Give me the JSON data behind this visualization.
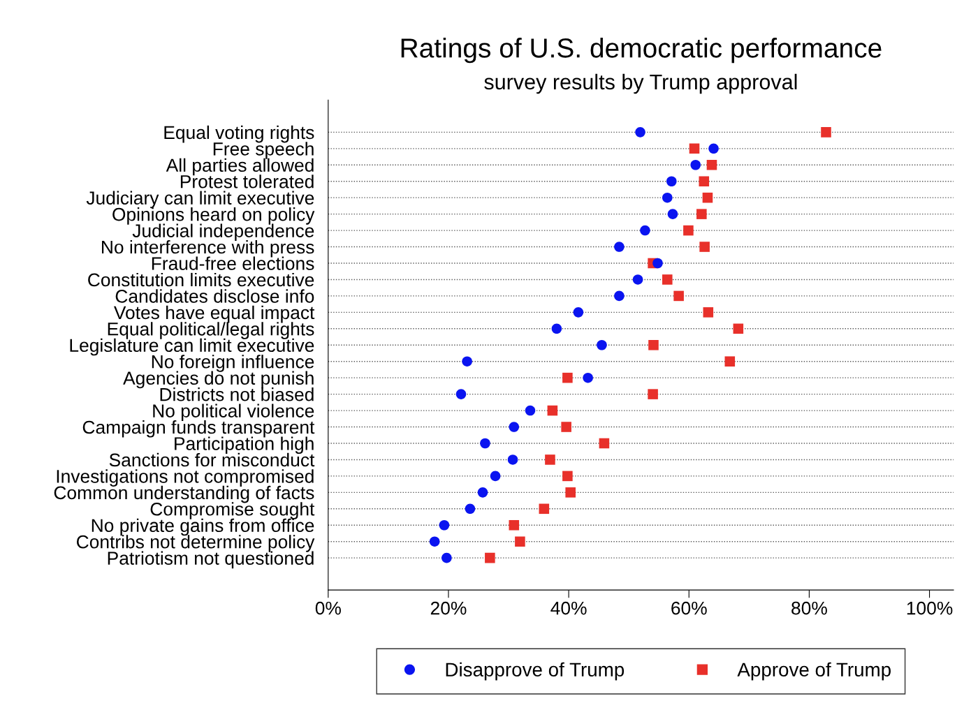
{
  "chart_data": {
    "type": "scatter",
    "title": "Ratings of U.S. democratic performance",
    "subtitle": "survey results by Trump approval",
    "categories": [
      "Equal voting rights",
      "Free speech",
      "All parties allowed",
      "Protest tolerated",
      "Judiciary can limit executive",
      "Opinions heard on policy",
      "Judicial independence",
      "No interference with press",
      "Fraud-free elections",
      "Constitution limits executive",
      "Candidates disclose info",
      "Votes have equal impact",
      "Equal political/legal rights",
      "Legislature can limit executive",
      "No foreign influence",
      "Agencies do not punish",
      "Districts not biased",
      "No political violence",
      "Campaign funds transparent",
      "Participation high",
      "Sanctions for misconduct",
      "Investigations not compromised",
      "Common understanding of facts",
      "Compromise sought",
      "No private gains from office",
      "Contribs not determine policy",
      "Patriotism not questioned"
    ],
    "orientation": "horizontal",
    "series": [
      {
        "name": "Disapprove of Trump",
        "color": "#0a14f0",
        "marker": "circle",
        "values": [
          51.9,
          64.1,
          61.1,
          57.1,
          56.4,
          57.3,
          52.7,
          48.4,
          54.8,
          51.5,
          48.4,
          41.6,
          38.0,
          45.5,
          23.1,
          43.2,
          22.1,
          33.6,
          30.9,
          26.1,
          30.7,
          27.8,
          25.7,
          23.6,
          19.3,
          17.7,
          19.7
        ]
      },
      {
        "name": "Approve of Trump",
        "color": "#e8302a",
        "marker": "square",
        "values": [
          82.8,
          60.9,
          63.8,
          62.5,
          63.1,
          62.1,
          59.9,
          62.6,
          54.0,
          56.4,
          58.3,
          63.2,
          68.2,
          54.1,
          66.8,
          39.8,
          54.0,
          37.3,
          39.6,
          45.9,
          36.9,
          39.8,
          40.3,
          35.9,
          30.9,
          31.9,
          26.9
        ]
      }
    ],
    "xlim": [
      0,
      104
    ],
    "xticks": [
      {
        "value": 0,
        "label": "0%"
      },
      {
        "value": 20,
        "label": "20%"
      },
      {
        "value": 40,
        "label": "40%"
      },
      {
        "value": 60,
        "label": "60%"
      },
      {
        "value": 80,
        "label": "80%"
      },
      {
        "value": 100,
        "label": "100%"
      }
    ],
    "grid": "y",
    "line_style": "dotted",
    "legend": "bottom"
  }
}
